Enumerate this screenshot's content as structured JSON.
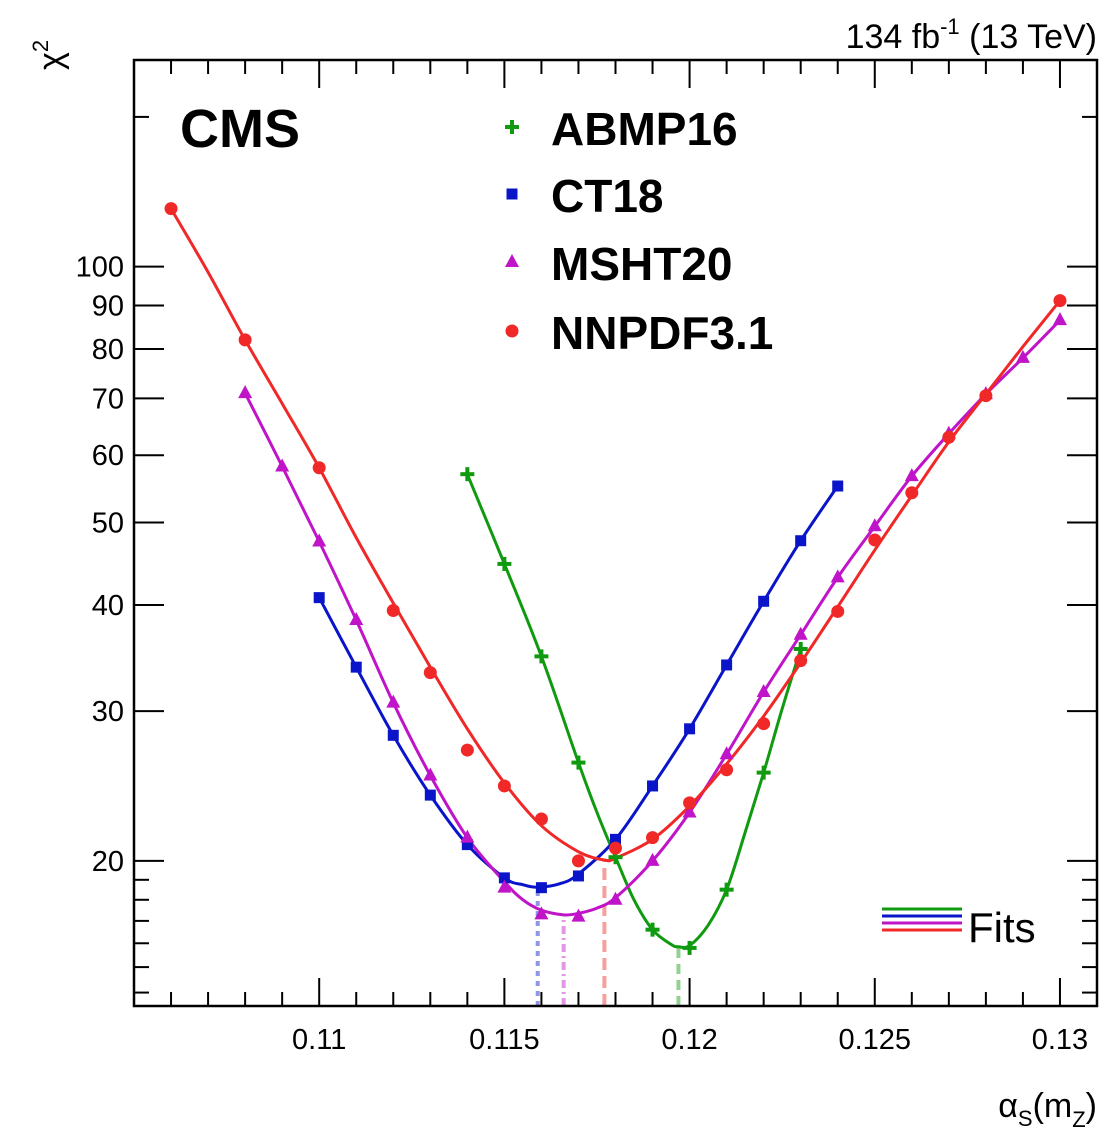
{
  "header": {
    "experiment": "CMS",
    "lumi_value": "134 fb",
    "lumi_exp": "-1",
    "energy": " (13 TeV)"
  },
  "axes": {
    "y_symbol": "χ",
    "y_sup": "2",
    "x_symbol": "α",
    "x_sub": "S",
    "x_paren_open": "(m",
    "x_sub2": "Z",
    "x_paren_close": ")"
  },
  "fits_label": "Fits",
  "chart_data": {
    "type": "scatter",
    "xlim": [
      0.105,
      0.131
    ],
    "ylim": [
      13.5,
      175
    ],
    "ylog": true,
    "x_ticks": [
      {
        "value": 0.11,
        "label": "0.11"
      },
      {
        "value": 0.115,
        "label": "0.115"
      },
      {
        "value": 0.12,
        "label": "0.12"
      },
      {
        "value": 0.125,
        "label": "0.125"
      },
      {
        "value": 0.13,
        "label": "0.13"
      }
    ],
    "y_ticks": [
      {
        "value": 20,
        "label": "20"
      },
      {
        "value": 30,
        "label": "30"
      },
      {
        "value": 40,
        "label": "40"
      },
      {
        "value": 50,
        "label": "50"
      },
      {
        "value": 60,
        "label": "60"
      },
      {
        "value": 70,
        "label": "70"
      },
      {
        "value": 80,
        "label": "80"
      },
      {
        "value": 90,
        "label": "90"
      },
      {
        "value": 100,
        "label": "100"
      }
    ],
    "legend_position": "top-center",
    "series": [
      {
        "name": "ABMP16",
        "color": "#109a10",
        "marker": "plus",
        "x": [
          0.114,
          0.115,
          0.116,
          0.117,
          0.118,
          0.119,
          0.12,
          0.121,
          0.122,
          0.123
        ],
        "y": [
          57.0,
          44.7,
          34.8,
          26.1,
          20.2,
          16.6,
          15.8,
          18.5,
          25.4,
          35.5
        ],
        "fit": {
          "x": [
            0.114,
            0.115,
            0.116,
            0.117,
            0.1175,
            0.118,
            0.1185,
            0.119,
            0.1195,
            0.1197,
            0.12,
            0.1205,
            0.121,
            0.1215,
            0.122,
            0.1225,
            0.123
          ],
          "y": [
            57.0,
            44.7,
            34.8,
            26.1,
            22.8,
            20.2,
            18.0,
            16.6,
            15.95,
            15.85,
            15.9,
            16.8,
            18.5,
            21.6,
            25.4,
            30.2,
            35.5
          ]
        },
        "minimum": 0.1197
      },
      {
        "name": "CT18",
        "color": "#0a14c8",
        "marker": "square",
        "x": [
          0.11,
          0.111,
          0.112,
          0.113,
          0.114,
          0.115,
          0.116,
          0.117,
          0.118,
          0.119,
          0.12,
          0.121,
          0.122,
          0.123,
          0.124
        ],
        "y": [
          40.8,
          33.8,
          28.1,
          23.9,
          20.9,
          19.1,
          18.6,
          19.2,
          21.2,
          24.5,
          28.6,
          34.0,
          40.4,
          47.6,
          55.2
        ],
        "fit": {
          "x": [
            0.11,
            0.111,
            0.112,
            0.113,
            0.114,
            0.115,
            0.1155,
            0.1159,
            0.1165,
            0.117,
            0.118,
            0.119,
            0.12,
            0.121,
            0.122,
            0.123,
            0.124
          ],
          "y": [
            40.8,
            33.8,
            28.1,
            23.9,
            20.9,
            19.1,
            18.75,
            18.62,
            18.8,
            19.3,
            21.2,
            24.5,
            28.6,
            34.0,
            40.4,
            47.6,
            55.2
          ]
        },
        "minimum": 0.1159
      },
      {
        "name": "MSHT20",
        "color": "#c014c8",
        "marker": "triangle",
        "x": [
          0.108,
          0.109,
          0.11,
          0.111,
          0.112,
          0.113,
          0.114,
          0.115,
          0.116,
          0.117,
          0.118,
          0.119,
          0.12,
          0.121,
          0.122,
          0.123,
          0.124,
          0.125,
          0.126,
          0.127,
          0.128,
          0.129,
          0.13
        ],
        "y": [
          71.0,
          58.2,
          47.5,
          38.4,
          30.7,
          25.2,
          21.3,
          18.6,
          17.3,
          17.2,
          18.0,
          20.0,
          22.8,
          26.7,
          31.6,
          36.9,
          43.1,
          49.5,
          56.7,
          63.6,
          70.8,
          78.1,
          86.5
        ],
        "fit": {
          "x": [
            0.108,
            0.109,
            0.11,
            0.111,
            0.112,
            0.113,
            0.114,
            0.115,
            0.1155,
            0.116,
            0.1166,
            0.117,
            0.1175,
            0.118,
            0.119,
            0.12,
            0.121,
            0.122,
            0.123,
            0.124,
            0.125,
            0.126,
            0.127,
            0.128,
            0.129,
            0.13
          ],
          "y": [
            71.0,
            58.2,
            47.5,
            38.4,
            30.7,
            25.2,
            21.3,
            18.9,
            18.0,
            17.5,
            17.28,
            17.35,
            17.6,
            18.1,
            20.0,
            22.8,
            26.7,
            31.6,
            36.9,
            43.1,
            49.5,
            56.7,
            63.6,
            70.8,
            78.1,
            86.5
          ]
        },
        "minimum": 0.1166
      },
      {
        "name": "NNPDF3.1",
        "color": "#f02828",
        "marker": "circle",
        "x": [
          0.106,
          0.108,
          0.11,
          0.112,
          0.113,
          0.114,
          0.115,
          0.116,
          0.117,
          0.118,
          0.119,
          0.12,
          0.121,
          0.122,
          0.123,
          0.124,
          0.125,
          0.126,
          0.127,
          0.128,
          0.13
        ],
        "y": [
          117.0,
          82.0,
          58.0,
          39.4,
          33.3,
          27.0,
          24.5,
          22.4,
          20.0,
          20.7,
          21.3,
          23.4,
          25.6,
          29.0,
          34.4,
          39.3,
          47.7,
          54.2,
          63.0,
          70.5,
          91.2
        ],
        "fit": {
          "x": [
            0.106,
            0.107,
            0.108,
            0.109,
            0.11,
            0.111,
            0.112,
            0.113,
            0.114,
            0.115,
            0.116,
            0.117,
            0.1177,
            0.118,
            0.119,
            0.12,
            0.121,
            0.122,
            0.123,
            0.124,
            0.125,
            0.126,
            0.127,
            0.128,
            0.129,
            0.13
          ],
          "y": [
            117.0,
            98.5,
            82.0,
            69.0,
            58.0,
            48.0,
            40.2,
            33.8,
            28.6,
            24.7,
            22.0,
            20.5,
            20.05,
            20.15,
            21.2,
            23.2,
            26.0,
            29.6,
            34.2,
            39.8,
            46.4,
            53.8,
            62.2,
            70.8,
            80.5,
            91.2
          ]
        },
        "minimum": 0.1177
      }
    ]
  }
}
